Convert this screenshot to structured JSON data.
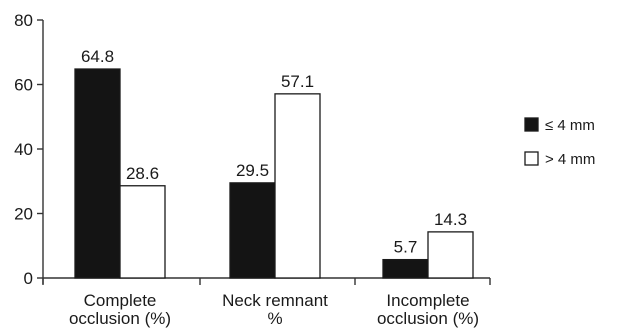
{
  "chart_data": {
    "type": "bar",
    "categories": [
      [
        "Complete",
        "occlusion (%)"
      ],
      [
        "Neck remnant",
        "%"
      ],
      [
        "Incomplete",
        "occlusion (%)"
      ]
    ],
    "series": [
      {
        "name": "≤ 4 mm",
        "values": [
          64.8,
          29.5,
          5.7
        ],
        "color": "#141414"
      },
      {
        "name": "> 4 mm",
        "values": [
          28.6,
          57.1,
          14.3
        ],
        "color": "#ffffff"
      }
    ],
    "value_labels": [
      [
        "64.8",
        "29.5",
        "5.7"
      ],
      [
        "28.6",
        "57.1",
        "14.3"
      ]
    ],
    "ylim": [
      0,
      80
    ],
    "yticks": [
      0,
      20,
      40,
      60,
      80
    ],
    "ytick_labels": [
      "0",
      "20",
      "40",
      "60",
      "80"
    ],
    "grid": false,
    "legend_position": "right",
    "title": "",
    "xlabel": "",
    "ylabel": ""
  }
}
